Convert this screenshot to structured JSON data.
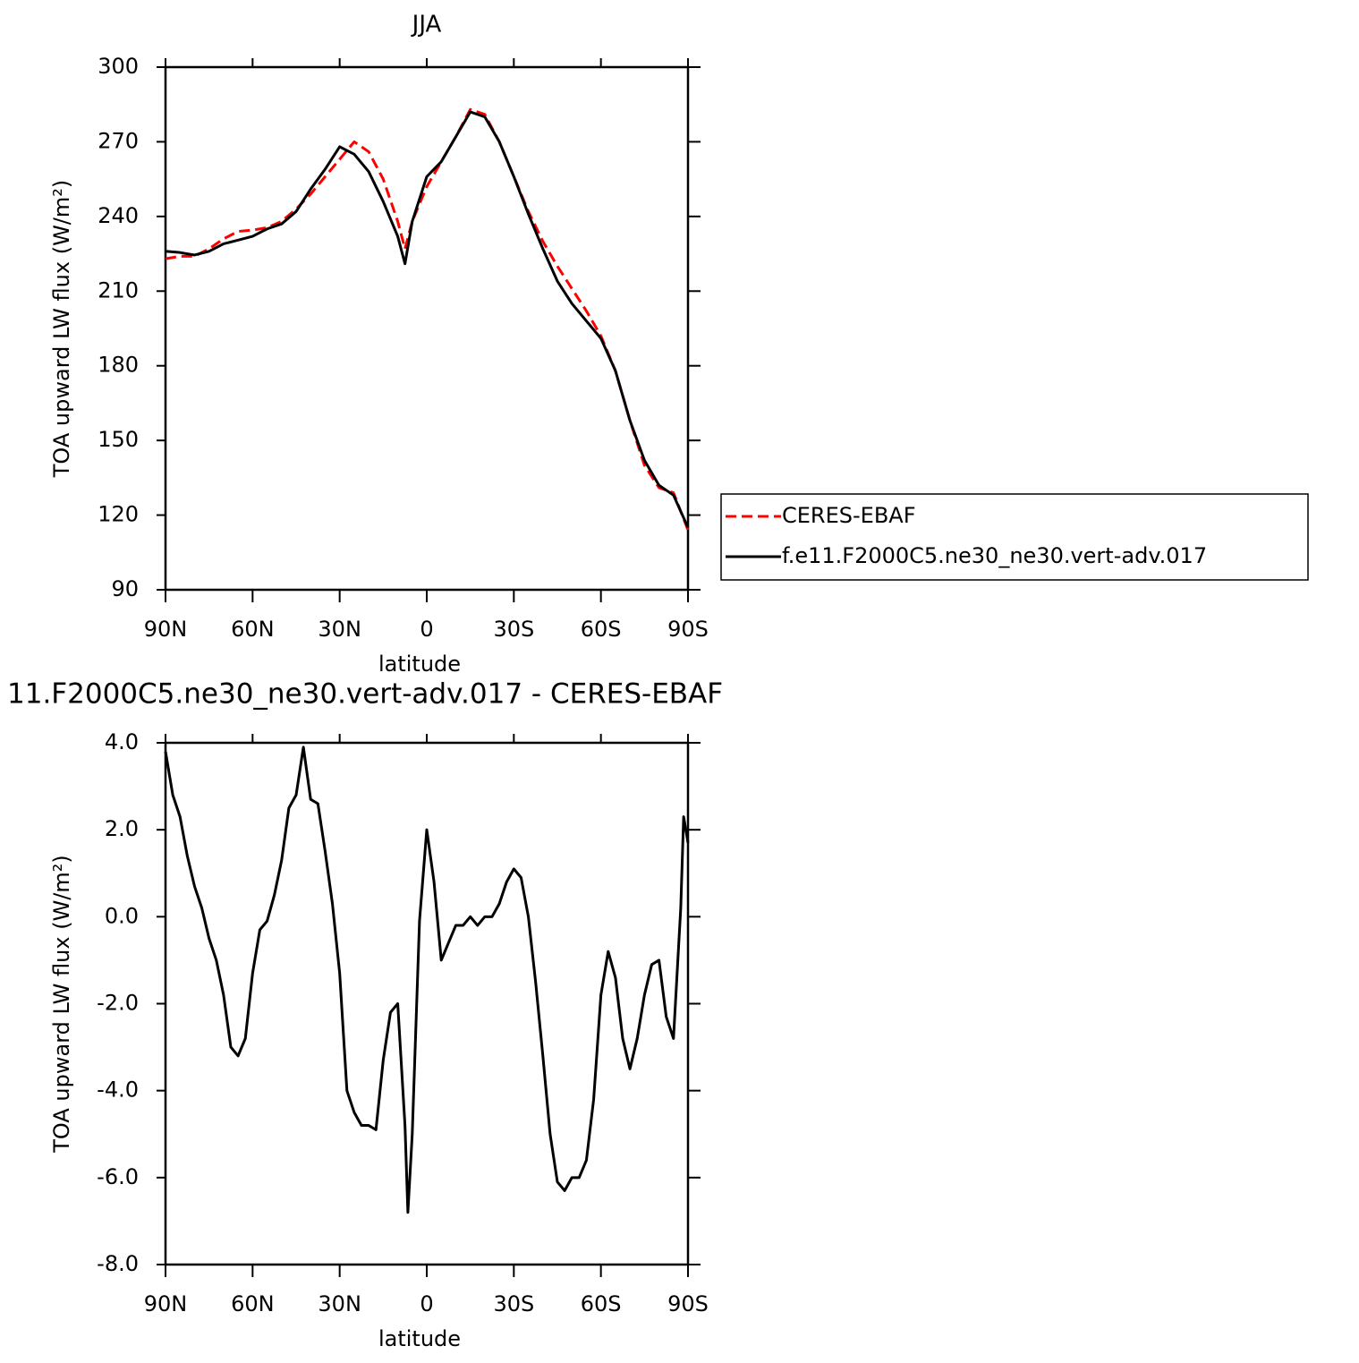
{
  "chart_data": [
    {
      "type": "line",
      "title": "JJA",
      "xlabel": "latitude",
      "ylabel": "TOA upward LW flux (W/m²)",
      "x": [
        90,
        85,
        80,
        75,
        70,
        65,
        60,
        55,
        50,
        45,
        40,
        35,
        30,
        25,
        20,
        15,
        10,
        7.5,
        5,
        0,
        -5,
        -10,
        -15,
        -20,
        -25,
        -30,
        -35,
        -40,
        -45,
        -50,
        -55,
        -60,
        -65,
        -70,
        -75,
        -80,
        -85,
        -90
      ],
      "xlim": [
        90,
        -90
      ],
      "xticks": [
        {
          "value": 90,
          "label": "90N"
        },
        {
          "value": 60,
          "label": "60N"
        },
        {
          "value": 30,
          "label": "30N"
        },
        0,
        {
          "value": -30,
          "label": "30S"
        },
        {
          "value": -60,
          "label": "60S"
        },
        {
          "value": -90,
          "label": "90S"
        }
      ],
      "ylim": [
        90,
        300
      ],
      "yticks": [
        90,
        120,
        150,
        180,
        210,
        240,
        270,
        300
      ],
      "legend": "right",
      "series": [
        {
          "name": "CERES-EBAF",
          "color": "#ff0000",
          "style": "dashed",
          "values": [
            223,
            224,
            224,
            227,
            231,
            234,
            234.5,
            235.5,
            238,
            243,
            249,
            256,
            263,
            270,
            266,
            255,
            238,
            227,
            238,
            252,
            262,
            272,
            283,
            281,
            270,
            256,
            242,
            230,
            220,
            211,
            202,
            192,
            178,
            158,
            140,
            131,
            129,
            114
          ]
        },
        {
          "name": "f.e11.F2000C5.ne30_ne30.vert-adv.017",
          "color": "#000000",
          "style": "solid",
          "values": [
            226,
            225.5,
            224.5,
            226,
            229,
            230.5,
            232,
            235,
            237,
            242,
            251,
            259,
            268,
            265,
            258,
            246,
            232,
            221,
            238,
            256,
            262,
            272,
            282,
            280,
            270,
            256,
            241,
            227,
            214,
            205,
            198,
            191,
            178,
            158,
            142,
            132,
            128,
            115
          ]
        }
      ]
    },
    {
      "type": "line",
      "title": "11.F2000C5.ne30_ne30.vert-adv.017 - CERES-EBAF",
      "xlabel": "latitude",
      "ylabel": "TOA upward LW flux (W/m²)",
      "x": [
        90,
        87.5,
        85,
        82.5,
        80,
        77.5,
        75,
        72.5,
        70,
        67.5,
        65,
        62.5,
        60,
        57.5,
        55,
        52.5,
        50,
        47.5,
        45,
        42.5,
        40,
        37.5,
        35,
        32.5,
        30,
        27.5,
        25,
        22.5,
        20,
        17.5,
        15,
        12.5,
        10,
        7.5,
        6.5,
        5,
        2.5,
        0,
        -2.5,
        -5,
        -7.5,
        -10,
        -12.5,
        -15,
        -17.5,
        -20,
        -22.5,
        -25,
        -27.5,
        -30,
        -32.5,
        -35,
        -37.5,
        -40,
        -42.5,
        -45,
        -47.5,
        -50,
        -52.5,
        -55,
        -57.5,
        -60,
        -62.5,
        -65,
        -67.5,
        -70,
        -72.5,
        -75,
        -77.5,
        -80,
        -82.5,
        -85,
        -87.5,
        -88.5,
        -90
      ],
      "xlim": [
        90,
        -90
      ],
      "xticks": [
        {
          "value": 90,
          "label": "90N"
        },
        {
          "value": 60,
          "label": "60N"
        },
        {
          "value": 30,
          "label": "30N"
        },
        0,
        {
          "value": -30,
          "label": "30S"
        },
        {
          "value": -60,
          "label": "60S"
        },
        {
          "value": -90,
          "label": "90S"
        }
      ],
      "ylim": [
        -8,
        4
      ],
      "yticks": [
        {
          "value": -8,
          "label": "-8.0"
        },
        {
          "value": -6,
          "label": "-6.0"
        },
        {
          "value": -4,
          "label": "-4.0"
        },
        {
          "value": -2,
          "label": "-2.0"
        },
        {
          "value": 0,
          "label": "0.0"
        },
        {
          "value": 2,
          "label": "2.0"
        },
        {
          "value": 4,
          "label": "4.0"
        }
      ],
      "series": [
        {
          "color": "#000000",
          "style": "solid",
          "values": [
            3.8,
            2.8,
            2.3,
            1.4,
            0.7,
            0.2,
            -0.5,
            -1.0,
            -1.8,
            -3.0,
            -3.2,
            -2.8,
            -1.3,
            -0.3,
            -0.1,
            0.5,
            1.3,
            2.5,
            2.8,
            3.9,
            2.7,
            2.6,
            1.5,
            0.3,
            -1.3,
            -4.0,
            -4.5,
            -4.8,
            -4.8,
            -4.9,
            -3.3,
            -2.2,
            -2.0,
            -4.8,
            -6.8,
            -5.0,
            -0.1,
            2.0,
            0.8,
            -1.0,
            -0.6,
            -0.2,
            -0.2,
            0.0,
            -0.2,
            0.0,
            0.0,
            0.3,
            0.8,
            1.1,
            0.9,
            0.0,
            -1.5,
            -3.2,
            -5.0,
            -6.1,
            -6.3,
            -6.0,
            -6.0,
            -5.6,
            -4.2,
            -1.8,
            -0.8,
            -1.4,
            -2.8,
            -3.5,
            -2.8,
            -1.8,
            -1.1,
            -1.0,
            -2.3,
            -2.8,
            0.2,
            2.3,
            1.7
          ]
        }
      ]
    }
  ]
}
